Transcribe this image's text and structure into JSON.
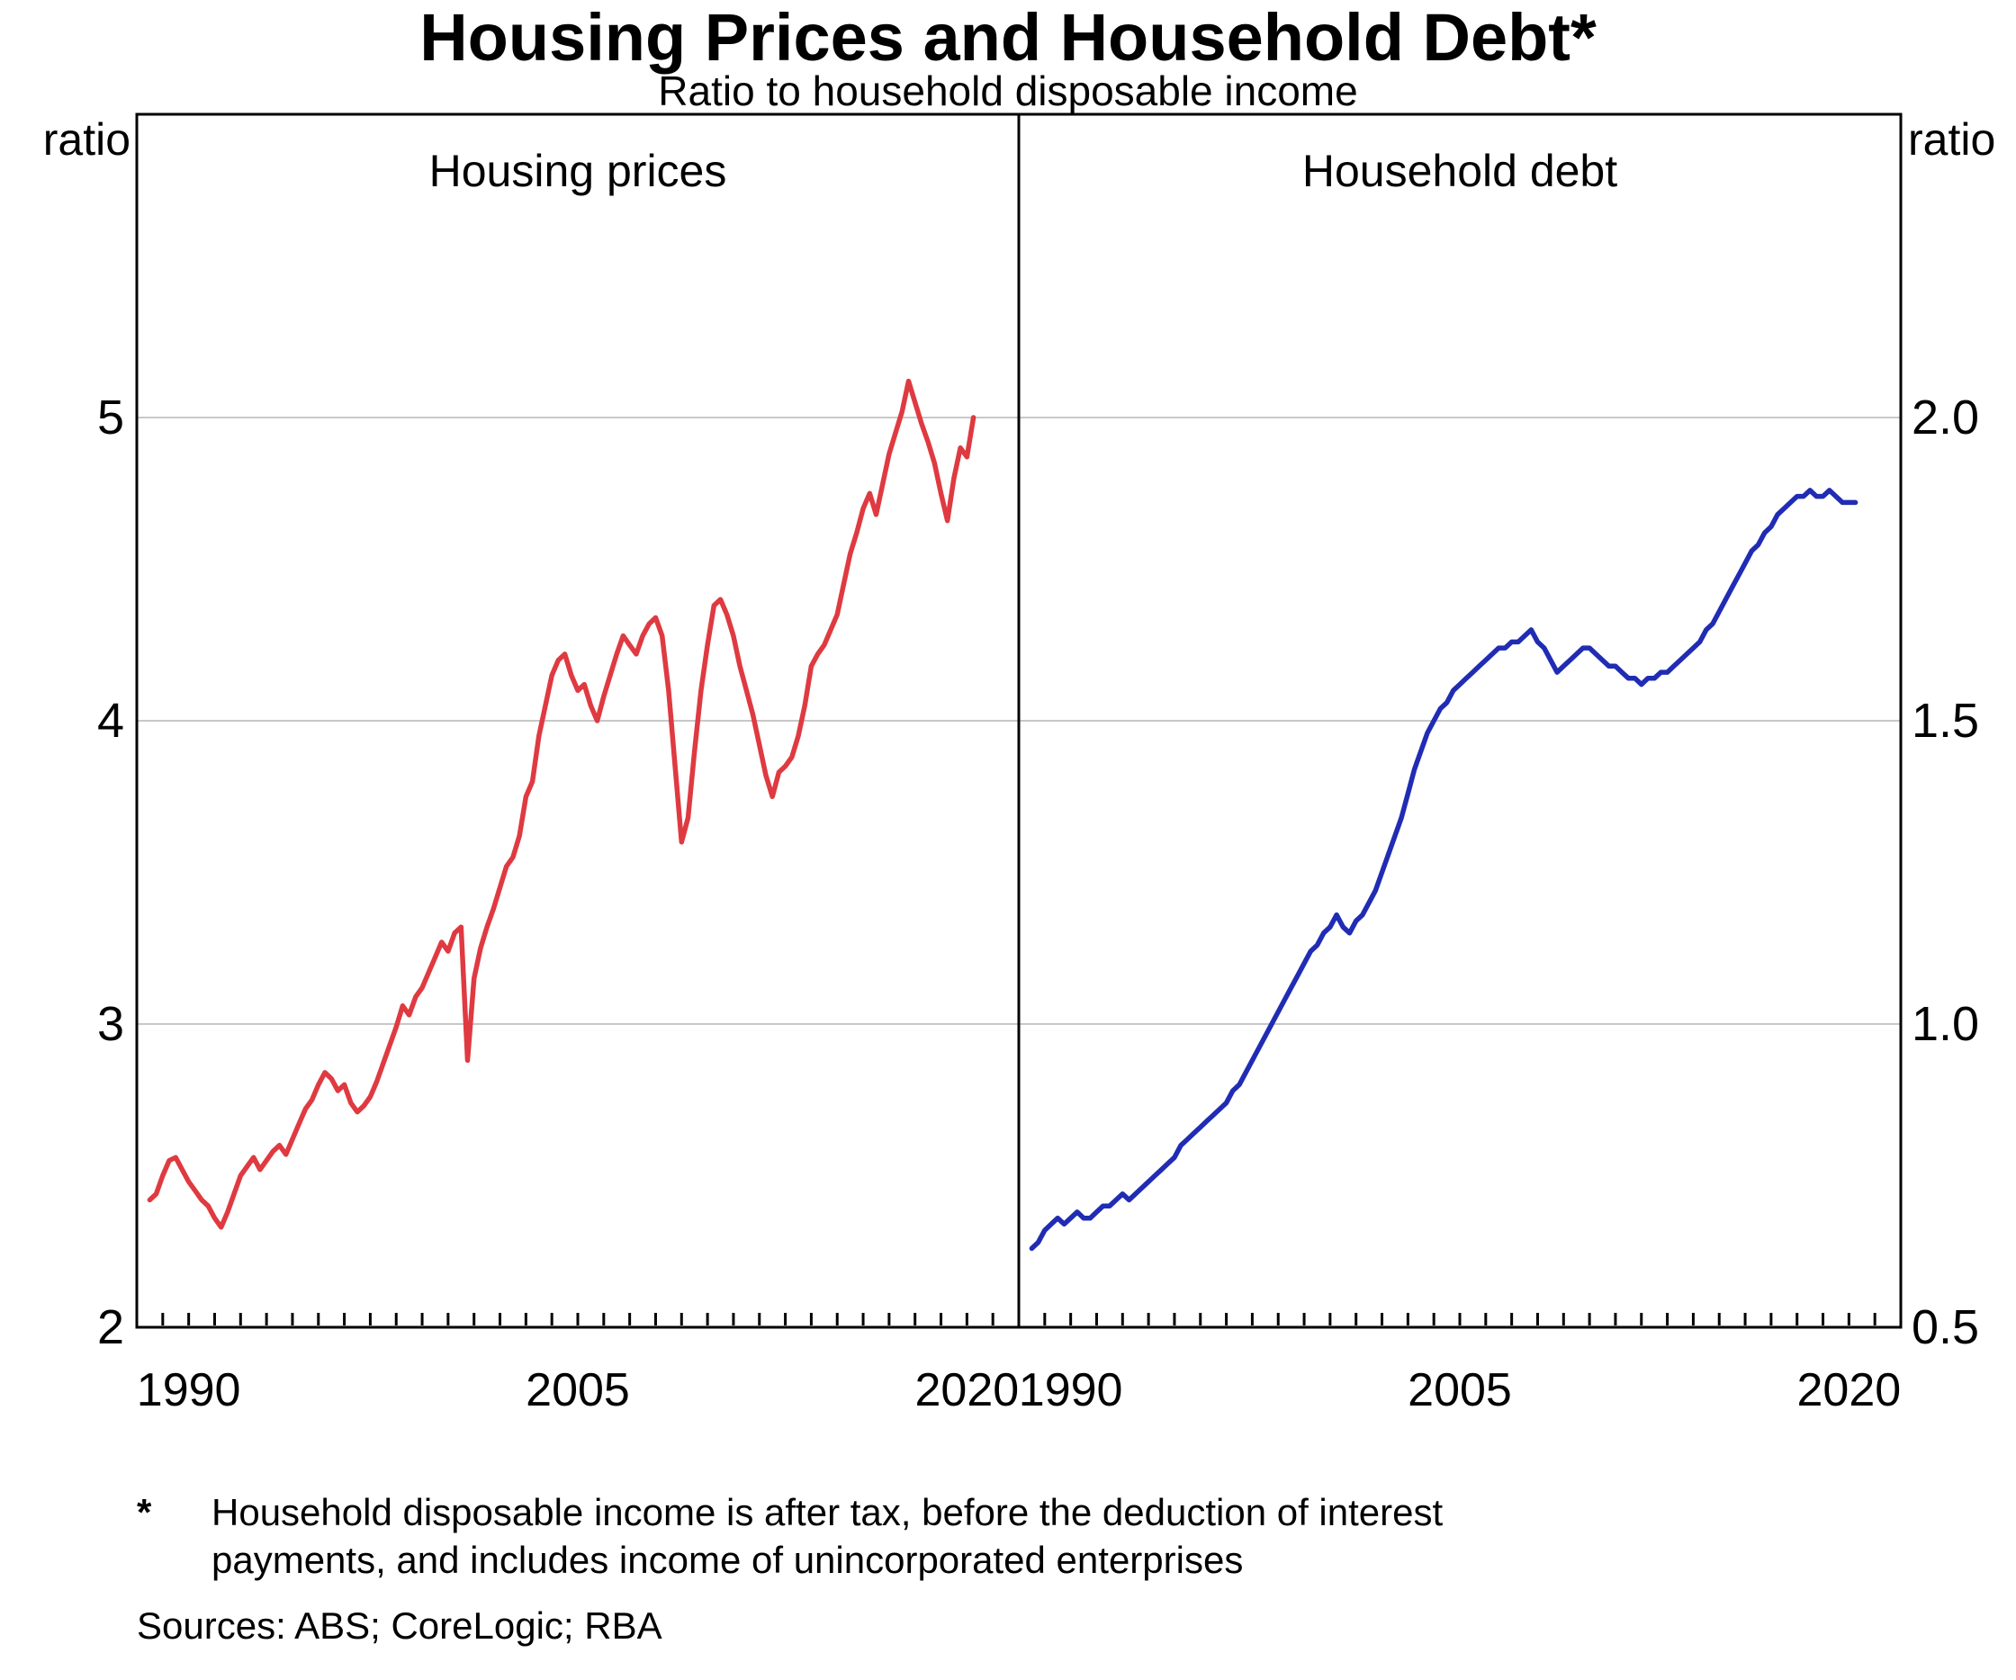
{
  "title": "Housing Prices and Household Debt*",
  "subtitle": "Ratio to household disposable income",
  "axis_labels": {
    "left": "ratio",
    "right": "ratio"
  },
  "footnote": {
    "marker": "*",
    "text": "Household disposable income is after tax, before the deduction of interest payments, and includes income of unincorporated enterprises"
  },
  "sources": "Sources: ABS; CoreLogic; RBA",
  "chart_data": [
    {
      "type": "line",
      "panel_title": "Housing prices",
      "xlim": [
        1988,
        2022
      ],
      "ylim": [
        2,
        6
      ],
      "yticks": [
        2,
        3,
        4,
        5
      ],
      "xticks": [
        1990,
        2005,
        2020
      ],
      "x_minor_tick_interval": 1,
      "y_tick_format": "integer",
      "grid": true,
      "series": [
        {
          "id": "housing-prices-line",
          "name": "Housing prices to household disposable income",
          "color": "#df3a41",
          "x_start": 1988.5,
          "x_step": 0.25,
          "values": [
            2.42,
            2.44,
            2.5,
            2.55,
            2.56,
            2.52,
            2.48,
            2.45,
            2.42,
            2.4,
            2.36,
            2.33,
            2.38,
            2.44,
            2.5,
            2.53,
            2.56,
            2.52,
            2.55,
            2.58,
            2.6,
            2.57,
            2.62,
            2.67,
            2.72,
            2.75,
            2.8,
            2.84,
            2.82,
            2.78,
            2.8,
            2.74,
            2.71,
            2.73,
            2.76,
            2.81,
            2.87,
            2.93,
            2.99,
            3.06,
            3.03,
            3.09,
            3.12,
            3.17,
            3.22,
            3.27,
            3.24,
            3.3,
            3.32,
            2.88,
            3.15,
            3.25,
            3.32,
            3.38,
            3.45,
            3.52,
            3.55,
            3.62,
            3.75,
            3.8,
            3.95,
            4.05,
            4.15,
            4.2,
            4.22,
            4.15,
            4.1,
            4.12,
            4.05,
            4.0,
            4.08,
            4.15,
            4.22,
            4.28,
            4.25,
            4.22,
            4.28,
            4.32,
            4.34,
            4.28,
            4.1,
            3.85,
            3.6,
            3.68,
            3.9,
            4.1,
            4.25,
            4.38,
            4.4,
            4.35,
            4.28,
            4.18,
            4.1,
            4.02,
            3.92,
            3.82,
            3.75,
            3.83,
            3.85,
            3.88,
            3.95,
            4.05,
            4.18,
            4.22,
            4.25,
            4.3,
            4.35,
            4.45,
            4.55,
            4.62,
            4.7,
            4.75,
            4.68,
            4.78,
            4.88,
            4.95,
            5.02,
            5.12,
            5.05,
            4.98,
            4.92,
            4.85,
            4.75,
            4.66,
            4.8,
            4.9,
            4.87,
            5.0
          ]
        }
      ]
    },
    {
      "type": "line",
      "panel_title": "Household debt",
      "xlim": [
        1988,
        2022
      ],
      "ylim": [
        0.5,
        2.5
      ],
      "yticks": [
        0.5,
        1.0,
        1.5,
        2.0
      ],
      "xticks": [
        1990,
        2005,
        2020
      ],
      "x_minor_tick_interval": 1,
      "y_tick_format": "one_decimal",
      "grid": true,
      "series": [
        {
          "id": "household-debt-line",
          "name": "Household debt to household disposable income",
          "color": "#202cb4",
          "x_start": 1988.5,
          "x_step": 0.25,
          "values": [
            0.63,
            0.64,
            0.66,
            0.67,
            0.68,
            0.67,
            0.68,
            0.69,
            0.68,
            0.68,
            0.69,
            0.7,
            0.7,
            0.71,
            0.72,
            0.71,
            0.72,
            0.73,
            0.74,
            0.75,
            0.76,
            0.77,
            0.78,
            0.8,
            0.81,
            0.82,
            0.83,
            0.84,
            0.85,
            0.86,
            0.87,
            0.89,
            0.9,
            0.92,
            0.94,
            0.96,
            0.98,
            1.0,
            1.02,
            1.04,
            1.06,
            1.08,
            1.1,
            1.12,
            1.13,
            1.15,
            1.16,
            1.18,
            1.16,
            1.15,
            1.17,
            1.18,
            1.2,
            1.22,
            1.25,
            1.28,
            1.31,
            1.34,
            1.38,
            1.42,
            1.45,
            1.48,
            1.5,
            1.52,
            1.53,
            1.55,
            1.56,
            1.57,
            1.58,
            1.59,
            1.6,
            1.61,
            1.62,
            1.62,
            1.63,
            1.63,
            1.64,
            1.65,
            1.63,
            1.62,
            1.6,
            1.58,
            1.59,
            1.6,
            1.61,
            1.62,
            1.62,
            1.61,
            1.6,
            1.59,
            1.59,
            1.58,
            1.57,
            1.57,
            1.56,
            1.57,
            1.57,
            1.58,
            1.58,
            1.59,
            1.6,
            1.61,
            1.62,
            1.63,
            1.65,
            1.66,
            1.68,
            1.7,
            1.72,
            1.74,
            1.76,
            1.78,
            1.79,
            1.81,
            1.82,
            1.84,
            1.85,
            1.86,
            1.87,
            1.87,
            1.88,
            1.87,
            1.87,
            1.88,
            1.87,
            1.86,
            1.86,
            1.86
          ]
        }
      ]
    }
  ]
}
